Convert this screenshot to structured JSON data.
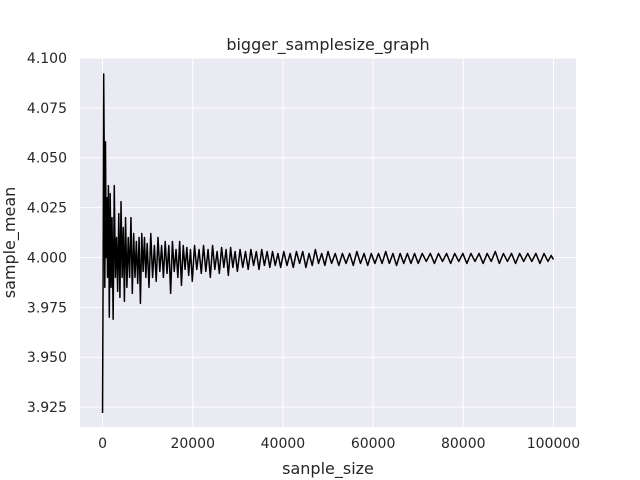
{
  "chart_data": {
    "type": "line",
    "title": "bigger_samplesize_graph",
    "xlabel": "sanple_size",
    "ylabel": "sample_mean",
    "xlim": [
      -5000,
      105000
    ],
    "ylim": [
      3.915,
      4.1
    ],
    "x_ticks": [
      0,
      20000,
      40000,
      60000,
      80000,
      100000
    ],
    "x_tick_labels": [
      "0",
      "20000",
      "40000",
      "60000",
      "80000",
      "100000"
    ],
    "y_ticks": [
      3.925,
      3.95,
      3.975,
      4.0,
      4.025,
      4.05,
      4.075,
      4.1
    ],
    "y_tick_labels": [
      "3.925",
      "3.950",
      "3.975",
      "4.000",
      "4.025",
      "4.050",
      "4.075",
      "4.100"
    ],
    "grid": true,
    "legend": "none",
    "colors": {
      "background": "#eaeaf2",
      "grid": "#ffffff",
      "line": "#000000"
    },
    "series": [
      {
        "values": [
          [
            0,
            3.922
          ],
          [
            120,
            3.99
          ],
          [
            250,
            4.092
          ],
          [
            380,
            4.05
          ],
          [
            500,
            3.985
          ],
          [
            650,
            4.058
          ],
          [
            800,
            4.0
          ],
          [
            950,
            4.03
          ],
          [
            1100,
            3.99
          ],
          [
            1300,
            4.036
          ],
          [
            1500,
            3.97
          ],
          [
            1700,
            4.032
          ],
          [
            1900,
            3.985
          ],
          [
            2100,
            4.02
          ],
          [
            2350,
            3.969
          ],
          [
            2600,
            4.036
          ],
          [
            2850,
            3.99
          ],
          [
            3100,
            4.01
          ],
          [
            3350,
            3.983
          ],
          [
            3600,
            4.022
          ],
          [
            3850,
            3.98
          ],
          [
            4100,
            4.028
          ],
          [
            4350,
            3.99
          ],
          [
            4600,
            4.015
          ],
          [
            4850,
            3.978
          ],
          [
            5100,
            4.02
          ],
          [
            5400,
            3.985
          ],
          [
            5700,
            4.01
          ],
          [
            6000,
            3.99
          ],
          [
            6300,
            4.02
          ],
          [
            6600,
            3.982
          ],
          [
            6900,
            4.012
          ],
          [
            7200,
            3.99
          ],
          [
            7500,
            4.008
          ],
          [
            7800,
            3.987
          ],
          [
            8100,
            4.01
          ],
          [
            8400,
            3.977
          ],
          [
            8700,
            4.012
          ],
          [
            9000,
            3.993
          ],
          [
            9300,
            4.01
          ],
          [
            9600,
            3.99
          ],
          [
            9900,
            4.007
          ],
          [
            10300,
            3.985
          ],
          [
            10700,
            4.012
          ],
          [
            11100,
            3.99
          ],
          [
            11500,
            4.006
          ],
          [
            11900,
            3.988
          ],
          [
            12300,
            4.01
          ],
          [
            12700,
            3.993
          ],
          [
            13100,
            4.006
          ],
          [
            13500,
            3.99
          ],
          [
            13900,
            4.008
          ],
          [
            14300,
            3.992
          ],
          [
            14700,
            4.006
          ],
          [
            15100,
            3.982
          ],
          [
            15500,
            4.008
          ],
          [
            15900,
            3.993
          ],
          [
            16300,
            4.004
          ],
          [
            16700,
            3.99
          ],
          [
            17100,
            4.008
          ],
          [
            17500,
            3.986
          ],
          [
            17900,
            4.006
          ],
          [
            18300,
            3.994
          ],
          [
            18700,
            4.005
          ],
          [
            19100,
            3.991
          ],
          [
            19500,
            4.004
          ],
          [
            19900,
            3.988
          ],
          [
            20400,
            4.006
          ],
          [
            20900,
            3.994
          ],
          [
            21400,
            4.004
          ],
          [
            21900,
            3.992
          ],
          [
            22400,
            4.006
          ],
          [
            22900,
            3.993
          ],
          [
            23400,
            4.004
          ],
          [
            23900,
            3.99
          ],
          [
            24400,
            4.006
          ],
          [
            24900,
            3.994
          ],
          [
            25400,
            4.003
          ],
          [
            25900,
            3.992
          ],
          [
            26400,
            4.005
          ],
          [
            26900,
            3.995
          ],
          [
            27400,
            4.004
          ],
          [
            27900,
            3.991
          ],
          [
            28400,
            4.005
          ],
          [
            28900,
            3.995
          ],
          [
            29400,
            4.003
          ],
          [
            29900,
            3.993
          ],
          [
            30500,
            4.004
          ],
          [
            31100,
            3.995
          ],
          [
            31700,
            4.003
          ],
          [
            32300,
            3.994
          ],
          [
            32900,
            4.004
          ],
          [
            33500,
            3.996
          ],
          [
            34100,
            4.003
          ],
          [
            34700,
            3.994
          ],
          [
            35300,
            4.004
          ],
          [
            35900,
            3.996
          ],
          [
            36500,
            4.003
          ],
          [
            37100,
            3.995
          ],
          [
            37700,
            4.003
          ],
          [
            38300,
            3.996
          ],
          [
            38900,
            4.002
          ],
          [
            39500,
            3.995
          ],
          [
            40200,
            4.003
          ],
          [
            40900,
            3.996
          ],
          [
            41600,
            4.002
          ],
          [
            42300,
            3.995
          ],
          [
            43000,
            4.003
          ],
          [
            43700,
            3.997
          ],
          [
            44400,
            4.003
          ],
          [
            45100,
            3.995
          ],
          [
            45800,
            4.002
          ],
          [
            46500,
            3.996
          ],
          [
            47200,
            4.004
          ],
          [
            47900,
            3.997
          ],
          [
            48600,
            4.002
          ],
          [
            49300,
            3.996
          ],
          [
            50000,
            4.003
          ],
          [
            50800,
            3.997
          ],
          [
            51600,
            4.002
          ],
          [
            52400,
            3.996
          ],
          [
            53200,
            4.002
          ],
          [
            54000,
            3.997
          ],
          [
            54800,
            4.002
          ],
          [
            55600,
            3.996
          ],
          [
            56400,
            4.003
          ],
          [
            57200,
            3.997
          ],
          [
            58000,
            4.002
          ],
          [
            58800,
            3.996
          ],
          [
            59600,
            4.002
          ],
          [
            60400,
            3.997
          ],
          [
            61200,
            4.002
          ],
          [
            62000,
            3.997
          ],
          [
            62800,
            4.003
          ],
          [
            63600,
            3.997
          ],
          [
            64400,
            4.002
          ],
          [
            65200,
            3.996
          ],
          [
            66000,
            4.002
          ],
          [
            66800,
            3.997
          ],
          [
            67600,
            4.002
          ],
          [
            68400,
            3.997
          ],
          [
            69200,
            4.002
          ],
          [
            70000,
            3.997
          ],
          [
            70900,
            4.002
          ],
          [
            71800,
            3.998
          ],
          [
            72700,
            4.002
          ],
          [
            73600,
            3.997
          ],
          [
            74500,
            4.002
          ],
          [
            75400,
            3.998
          ],
          [
            76300,
            4.002
          ],
          [
            77200,
            3.997
          ],
          [
            78100,
            4.002
          ],
          [
            79000,
            3.998
          ],
          [
            79900,
            4.002
          ],
          [
            80800,
            3.997
          ],
          [
            81700,
            4.002
          ],
          [
            82600,
            3.998
          ],
          [
            83500,
            4.002
          ],
          [
            84400,
            3.997
          ],
          [
            85300,
            4.002
          ],
          [
            86200,
            3.998
          ],
          [
            87100,
            4.003
          ],
          [
            88000,
            3.997
          ],
          [
            88900,
            4.002
          ],
          [
            89800,
            3.998
          ],
          [
            90700,
            4.002
          ],
          [
            91600,
            3.997
          ],
          [
            92500,
            4.002
          ],
          [
            93400,
            3.998
          ],
          [
            94300,
            4.002
          ],
          [
            95200,
            3.998
          ],
          [
            96100,
            4.002
          ],
          [
            97000,
            3.997
          ],
          [
            97900,
            4.002
          ],
          [
            98800,
            3.998
          ],
          [
            99500,
            4.001
          ],
          [
            100000,
            3.999
          ]
        ]
      }
    ]
  }
}
